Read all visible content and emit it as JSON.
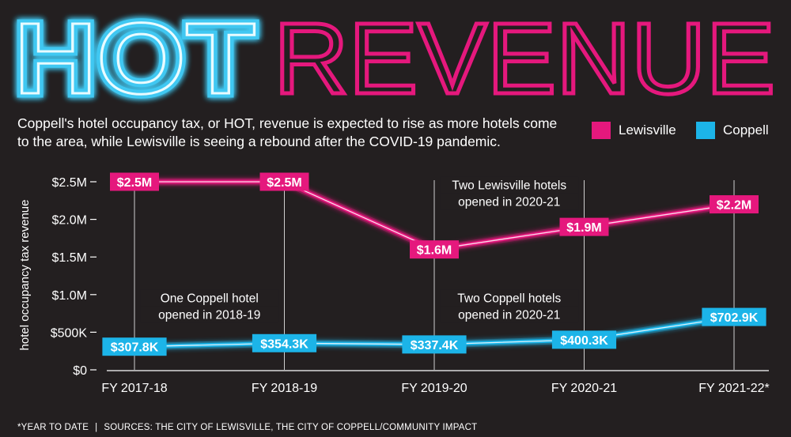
{
  "title": {
    "word1": "HOT",
    "word2": "REVENUE"
  },
  "intro": "Coppell's hotel occupancy tax, or HOT, revenue is expected to rise as more hotels come to the area, while Lewisville is seeing a rebound after the COVID-19 pandemic.",
  "colors": {
    "lewisville": "#e5187d",
    "coppell": "#1cb4e8",
    "background": "#231f20",
    "title_glow": "#35c3f0"
  },
  "footer": {
    "note": "*YEAR TO DATE",
    "separator": "|",
    "sources": "SOURCES: THE CITY OF LEWISVILLE, THE CITY OF COPPELL/COMMUNITY IMPACT"
  },
  "chart_data": {
    "type": "line",
    "ylabel": "hotel occupancy tax revenue",
    "xlabel": "",
    "categories": [
      "FY 2017-18",
      "FY 2018-19",
      "FY 2019-20",
      "FY 2020-21",
      "FY 2021-22*"
    ],
    "ylim": [
      0,
      2500000
    ],
    "yticks": [
      {
        "value": 0,
        "label": "$0"
      },
      {
        "value": 500000,
        "label": "$500K"
      },
      {
        "value": 1000000,
        "label": "$1.0M"
      },
      {
        "value": 1500000,
        "label": "$1.5M"
      },
      {
        "value": 2000000,
        "label": "$2.0M"
      },
      {
        "value": 2500000,
        "label": "$2.5M"
      }
    ],
    "legend": "top-right",
    "grid": "vertical",
    "series": [
      {
        "name": "Lewisville",
        "color": "#e5187d",
        "values": [
          2500000,
          2500000,
          1600000,
          1900000,
          2200000
        ],
        "labels": [
          "$2.5M",
          "$2.5M",
          "$1.6M",
          "$1.9M",
          "$2.2M"
        ]
      },
      {
        "name": "Coppell",
        "color": "#1cb4e8",
        "values": [
          307800,
          354300,
          337400,
          400300,
          702900
        ],
        "labels": [
          "$307.8K",
          "$354.3K",
          "$337.4K",
          "$400.3K",
          "$702.9K"
        ]
      }
    ],
    "annotations": [
      {
        "text": [
          "Two Lewisville hotels",
          "opened in 2020-21"
        ],
        "category_range": [
          2,
          3
        ],
        "value": 2400000
      },
      {
        "text": [
          "One Coppell hotel",
          "opened in 2018-19"
        ],
        "category_range": [
          0,
          1
        ],
        "value": 900000
      },
      {
        "text": [
          "Two Coppell hotels",
          "opened in 2020-21"
        ],
        "category_range": [
          2,
          3
        ],
        "value": 900000
      }
    ]
  }
}
